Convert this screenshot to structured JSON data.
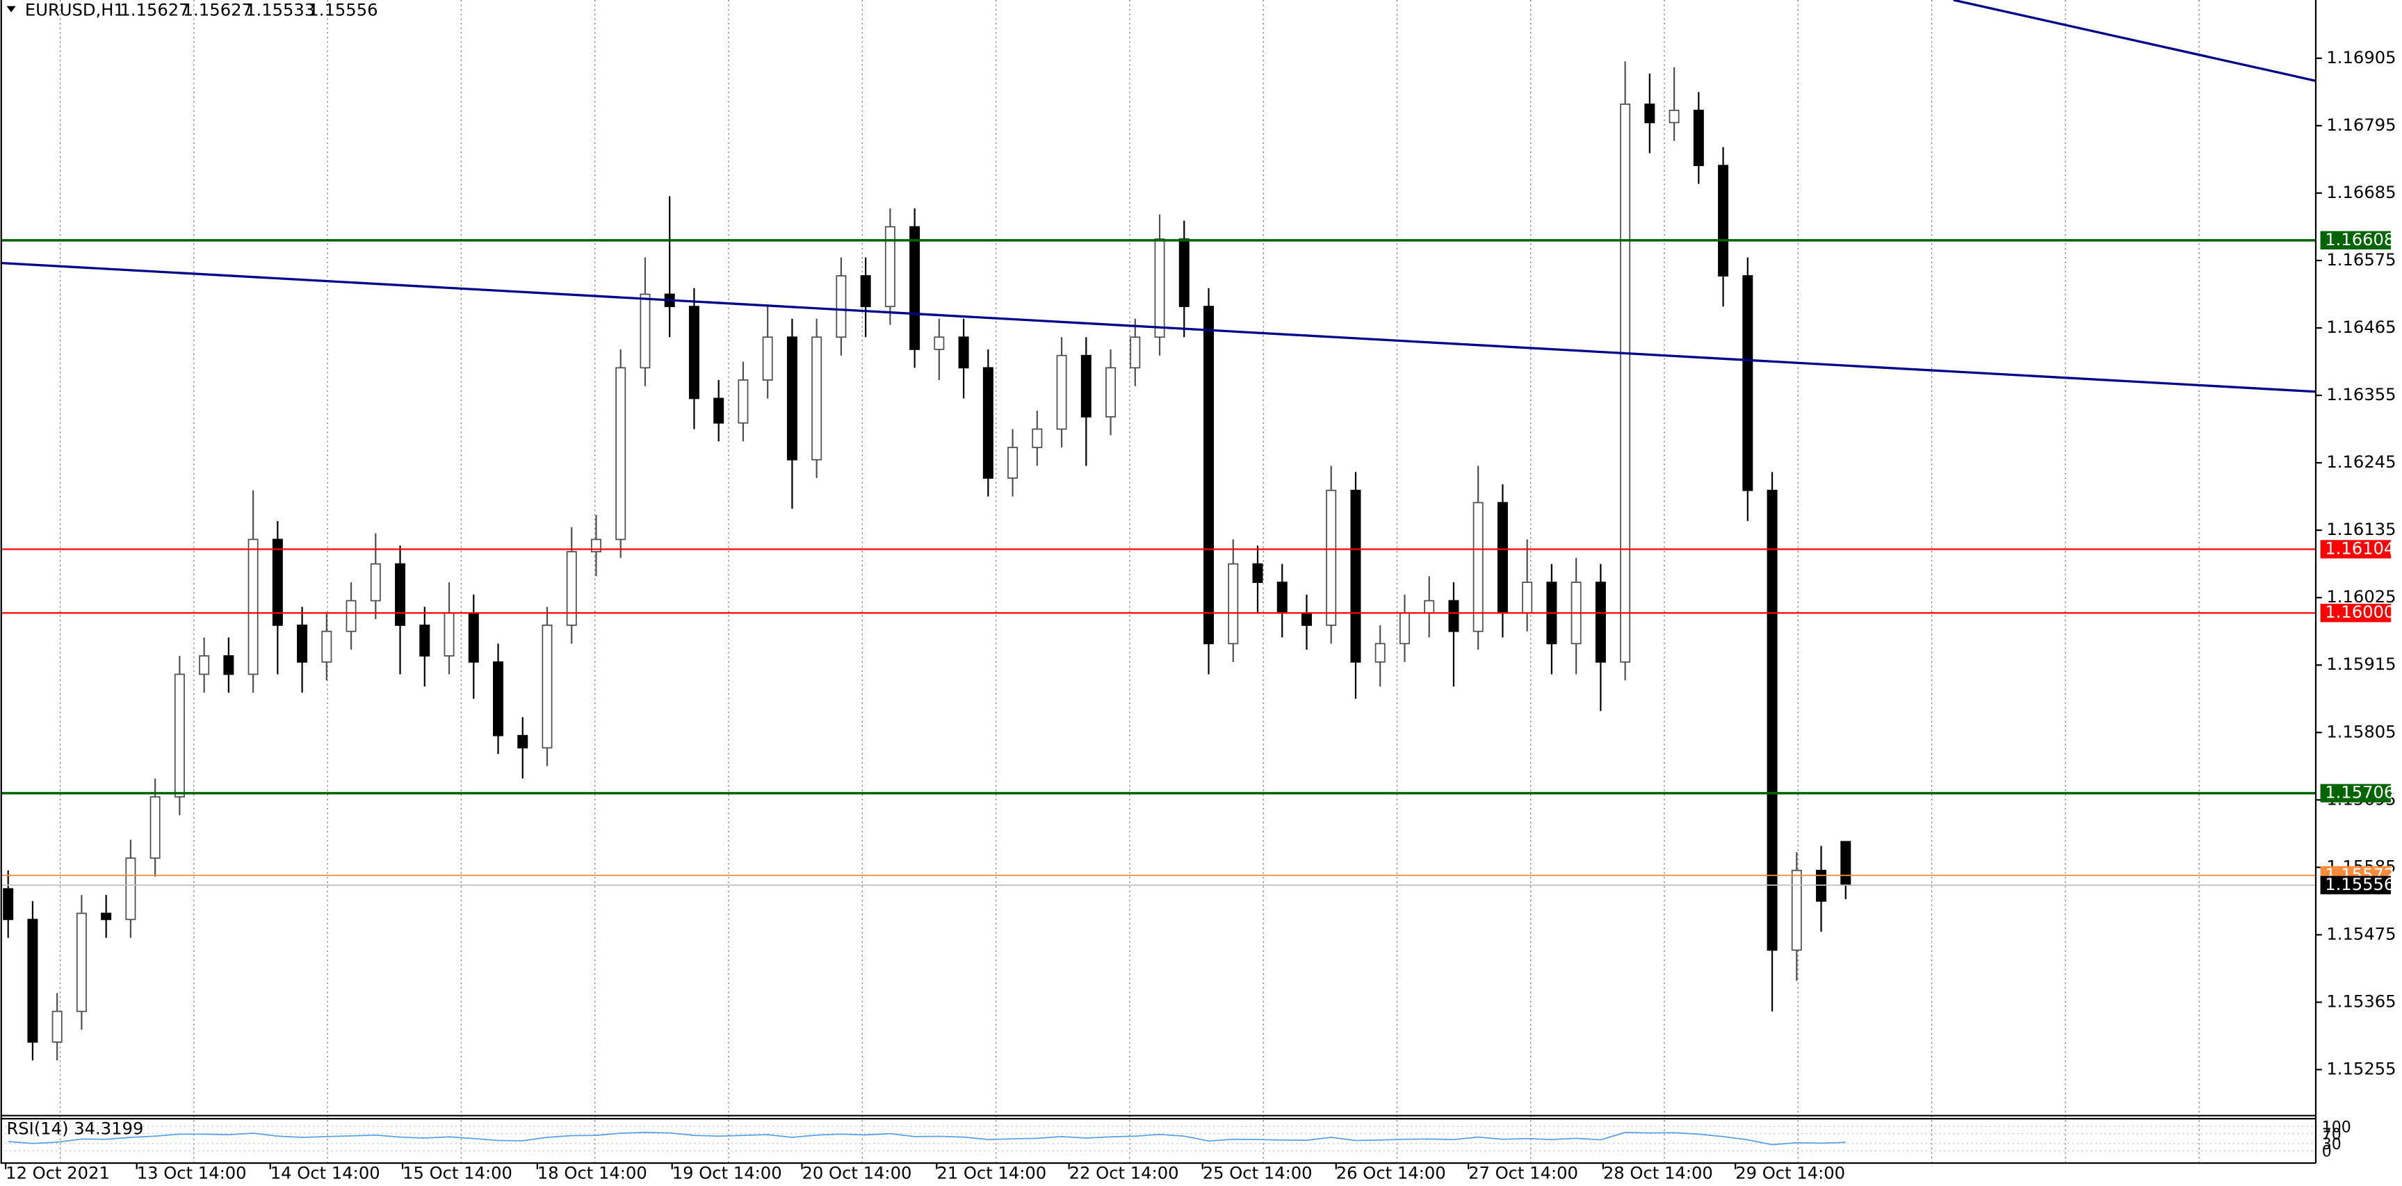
{
  "chart_data": {
    "type": "candlestick",
    "symbol": "EURUSD,H1",
    "open": [
      1.1555,
      1.155,
      1.153,
      1.1535,
      1.1551,
      1.155,
      1.156,
      1.157,
      1.159,
      1.1593,
      1.159,
      1.1612,
      1.1598,
      1.1592,
      1.1597,
      1.1602,
      1.1608,
      1.1598,
      1.1593,
      1.16,
      1.1592,
      1.158,
      1.1578,
      1.1598,
      1.161,
      1.1612,
      1.164,
      1.1652,
      1.165,
      1.1635,
      1.1631,
      1.1638,
      1.1645,
      1.1625,
      1.1645,
      1.1655,
      1.165,
      1.1663,
      1.1643,
      1.1645,
      1.164,
      1.1622,
      1.1627,
      1.163,
      1.1642,
      1.1632,
      1.164,
      1.1645,
      1.1661,
      1.165,
      1.1595,
      1.1608,
      1.1605,
      1.16,
      1.1598,
      1.162,
      1.1592,
      1.1595,
      1.16,
      1.1602,
      1.1597,
      1.1618,
      1.16,
      1.1605,
      1.1595,
      1.1605,
      1.1592,
      1.1683,
      1.168,
      1.1682,
      1.1673,
      1.1655,
      1.162,
      1.1545,
      1.1558,
      1.15627
    ],
    "high": [
      1.1558,
      1.1553,
      1.1538,
      1.1554,
      1.1554,
      1.1563,
      1.1573,
      1.1593,
      1.1596,
      1.1596,
      1.162,
      1.1615,
      1.1601,
      1.16,
      1.1605,
      1.1613,
      1.1611,
      1.1601,
      1.1605,
      1.1603,
      1.1595,
      1.1583,
      1.1601,
      1.1614,
      1.1616,
      1.1643,
      1.1658,
      1.1668,
      1.1653,
      1.1638,
      1.1641,
      1.165,
      1.1648,
      1.1648,
      1.1658,
      1.1658,
      1.1666,
      1.1666,
      1.1648,
      1.1648,
      1.1643,
      1.163,
      1.1633,
      1.1645,
      1.1645,
      1.1643,
      1.1648,
      1.1665,
      1.1664,
      1.1653,
      1.1612,
      1.1611,
      1.1608,
      1.1603,
      1.1624,
      1.1623,
      1.1598,
      1.1603,
      1.1606,
      1.1605,
      1.1624,
      1.1621,
      1.1612,
      1.1608,
      1.1609,
      1.1608,
      1.169,
      1.1688,
      1.1689,
      1.1685,
      1.1676,
      1.1658,
      1.1623,
      1.1561,
      1.1562,
      1.15627
    ],
    "low": [
      1.1547,
      1.1527,
      1.1527,
      1.1532,
      1.1547,
      1.1547,
      1.1557,
      1.1567,
      1.1587,
      1.1587,
      1.1587,
      1.159,
      1.1587,
      1.1589,
      1.1594,
      1.1599,
      1.159,
      1.1588,
      1.159,
      1.1586,
      1.1577,
      1.1573,
      1.1575,
      1.1595,
      1.1606,
      1.1609,
      1.1637,
      1.1645,
      1.163,
      1.1628,
      1.1628,
      1.1635,
      1.1617,
      1.1622,
      1.1642,
      1.1645,
      1.1647,
      1.164,
      1.1638,
      1.1635,
      1.1619,
      1.1619,
      1.1624,
      1.1627,
      1.1624,
      1.1629,
      1.1637,
      1.1642,
      1.1645,
      1.159,
      1.1592,
      1.16,
      1.1596,
      1.1594,
      1.1595,
      1.1586,
      1.1588,
      1.1592,
      1.1596,
      1.1588,
      1.1594,
      1.1596,
      1.1597,
      1.159,
      1.159,
      1.1584,
      1.1589,
      1.1675,
      1.1677,
      1.167,
      1.165,
      1.1615,
      1.1535,
      1.154,
      1.1548,
      1.15533
    ],
    "close": [
      1.155,
      1.153,
      1.1535,
      1.1551,
      1.155,
      1.156,
      1.157,
      1.159,
      1.1593,
      1.159,
      1.1612,
      1.1598,
      1.1592,
      1.1597,
      1.1602,
      1.1608,
      1.1598,
      1.1593,
      1.16,
      1.1592,
      1.158,
      1.1578,
      1.1598,
      1.161,
      1.1612,
      1.164,
      1.1652,
      1.165,
      1.1635,
      1.1631,
      1.1638,
      1.1645,
      1.1625,
      1.1645,
      1.1655,
      1.165,
      1.1663,
      1.1643,
      1.1645,
      1.164,
      1.1622,
      1.1627,
      1.163,
      1.1642,
      1.1632,
      1.164,
      1.1645,
      1.1661,
      1.165,
      1.1595,
      1.1608,
      1.1605,
      1.16,
      1.1598,
      1.162,
      1.1592,
      1.1595,
      1.16,
      1.1602,
      1.1597,
      1.1618,
      1.16,
      1.1605,
      1.1595,
      1.1605,
      1.1592,
      1.1683,
      1.168,
      1.1682,
      1.1673,
      1.1655,
      1.162,
      1.1545,
      1.1558,
      1.1553,
      1.15556
    ],
    "bull_color": "#ffffff",
    "bear_color": "#000000",
    "outline_color": "#505050",
    "ylim": [
      1.1518,
      1.17
    ],
    "yticks": [
      1.16905,
      1.16795,
      1.16685,
      1.16575,
      1.16465,
      1.16355,
      1.16245,
      1.16135,
      1.16025,
      1.15915,
      1.15805,
      1.15695,
      1.15585,
      1.15475,
      1.15365,
      1.15255
    ],
    "xticks": [
      {
        "value": -0.1,
        "label": "12 Oct 2021"
      },
      {
        "value": 5.25,
        "label": "13 Oct 14:00"
      },
      {
        "value": 10.7,
        "label": "14 Oct 14:00"
      },
      {
        "value": 16.1,
        "label": "15 Oct 14:00"
      },
      {
        "value": 21.6,
        "label": "18 Oct 14:00"
      },
      {
        "value": 27.1,
        "label": "19 Oct 14:00"
      },
      {
        "value": 32.4,
        "label": "20 Oct 14:00"
      },
      {
        "value": 37.9,
        "label": "21 Oct 14:00"
      },
      {
        "value": 43.3,
        "label": "22 Oct 14:00"
      },
      {
        "value": 48.75,
        "label": "25 Oct 14:00"
      },
      {
        "value": 54.2,
        "label": "26 Oct 14:00"
      },
      {
        "value": 59.6,
        "label": "27 Oct 14:00"
      },
      {
        "value": 65.1,
        "label": "28 Oct 14:00"
      },
      {
        "value": 70.5,
        "label": "29 Oct 14:00"
      }
    ],
    "levels": [
      {
        "value": 1.16608,
        "color": "#006400"
      },
      {
        "value": 1.16104,
        "color": "#ff0000"
      },
      {
        "value": {
          "value": 1.16,
          "label": "1.16000"
        },
        "color": "#ff0000"
      },
      {
        "value": 1.15706,
        "color": "#006400"
      }
    ],
    "ask": {
      "value": 1.15572,
      "color": "#ff8c3c"
    },
    "bid_color": "#c0c0c0",
    "trendlines": [
      {
        "x": [
          -0.31,
          94.2
        ],
        "y": [
          1.16571,
          1.16361
        ],
        "color": "#00008b"
      },
      {
        "x": [
          79.4,
          94.2
        ],
        "y": [
          1.17,
          1.16868
        ],
        "color": "#00008b"
      }
    ],
    "rsi": {
      "label": "RSI(14) 34.3199",
      "color": "#5aa0e6",
      "ylim": [
        0,
        100
      ],
      "yticks": [
        100,
        70,
        30,
        0
      ],
      "values": [
        38,
        30,
        35,
        48,
        47,
        55,
        60,
        68,
        68,
        66,
        72,
        60,
        55,
        58,
        61,
        64,
        56,
        52,
        57,
        50,
        42,
        41,
        55,
        62,
        63,
        72,
        75,
        73,
        63,
        60,
        63,
        66,
        55,
        64,
        68,
        65,
        70,
        58,
        59,
        56,
        46,
        49,
        51,
        58,
        52,
        57,
        60,
        67,
        60,
        40,
        47,
        46,
        44,
        43,
        55,
        42,
        44,
        47,
        48,
        46,
        56,
        47,
        50,
        46,
        51,
        45,
        75,
        73,
        74,
        68,
        58,
        45,
        25,
        33,
        31,
        34.3199
      ]
    }
  }
}
